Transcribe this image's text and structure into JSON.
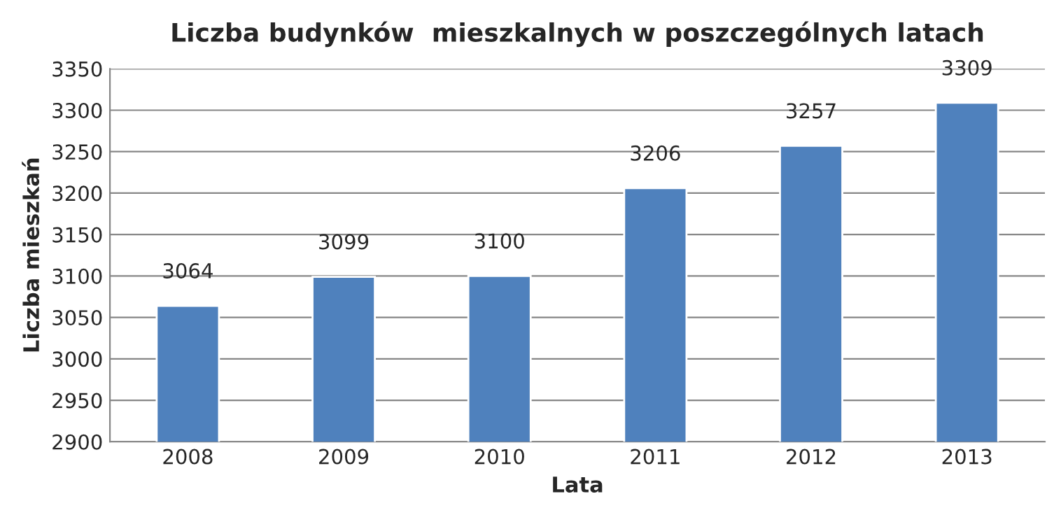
{
  "chart_data": {
    "type": "bar",
    "title": "Liczba budynków  mieszkalnych w poszczególnych latach",
    "xlabel": "Lata",
    "ylabel": "Liczba mieszkań",
    "categories": [
      "2008",
      "2009",
      "2010",
      "2011",
      "2012",
      "2013"
    ],
    "series": [
      {
        "color": "#4f81bd",
        "values": [
          3064,
          3099,
          3100,
          3206,
          3257,
          3309
        ]
      }
    ],
    "ylim": [
      2900,
      3350
    ],
    "yticks": [
      2900,
      2950,
      3000,
      3050,
      3100,
      3150,
      3200,
      3250,
      3300,
      3350
    ],
    "grid": "y",
    "data_labels": true
  }
}
